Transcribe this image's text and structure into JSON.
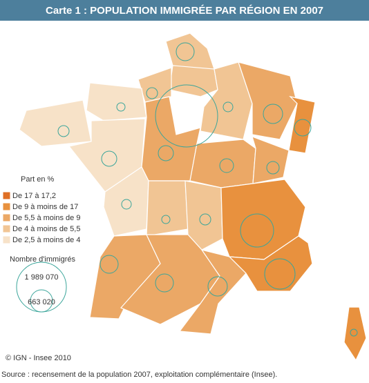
{
  "header": {
    "title": "Carte 1 : POPULATION IMMIGRÉE PAR RÉGION EN 2007"
  },
  "legend": {
    "title": "Part en %",
    "classes": [
      {
        "label": "De 17 à 17,2",
        "color": "#df6f25"
      },
      {
        "label": "De 9 à moins de 17",
        "color": "#e8913e"
      },
      {
        "label": "De 5,5 à moins de 9",
        "color": "#eba866"
      },
      {
        "label": "De 4 à moins de 5,5",
        "color": "#f1c594"
      },
      {
        "label": "De 2,5 à moins de 4",
        "color": "#f7e2c8"
      }
    ]
  },
  "circle_legend": {
    "title": "Nombre d'immigrés",
    "values": [
      "1 989 070",
      "663 020"
    ]
  },
  "footer": {
    "credit": "© IGN - Insee 2010",
    "source": "Source : recensement de la population 2007, exploitation complémentaire (Insee)."
  }
}
